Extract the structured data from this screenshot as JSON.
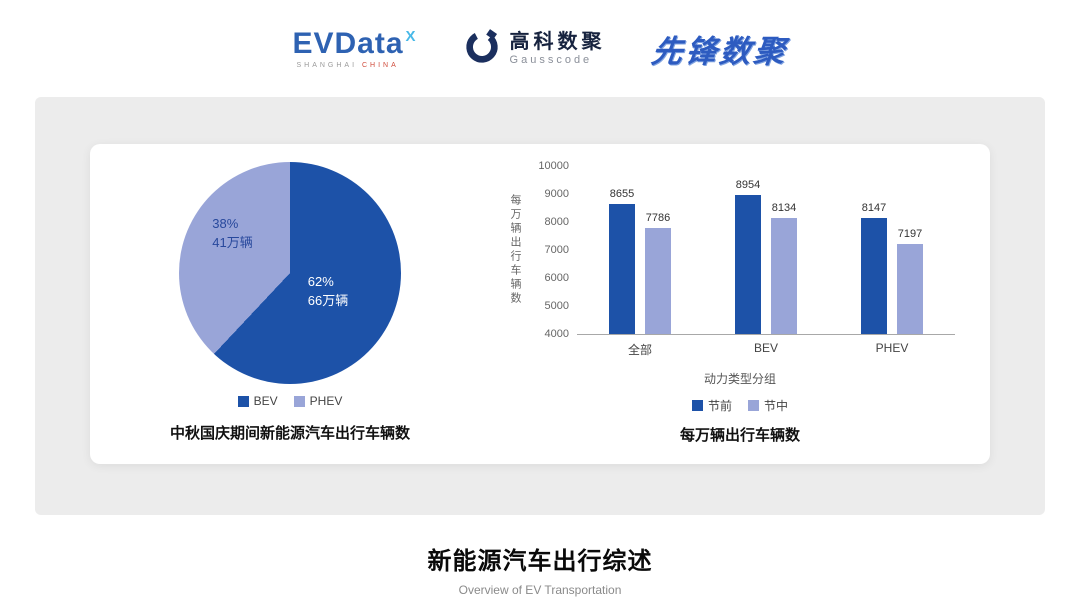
{
  "header": {
    "evdata": {
      "text": "EVData",
      "sup": "X",
      "sub_left": "SHANGHAI",
      "sub_right": "CHINA"
    },
    "gausscode": {
      "cn": "高科数聚",
      "en": "Gausscode"
    },
    "pioneer": "先锋数聚"
  },
  "colors": {
    "primary": "#1d52a8",
    "secondary": "#99a5d8"
  },
  "chart_data": [
    {
      "type": "pie",
      "title": "中秋国庆期间新能源汽车出行车辆数",
      "slices": [
        {
          "name": "BEV",
          "pct": 62,
          "pct_label": "62%",
          "amount_label": "66万辆",
          "color": "#1d52a8"
        },
        {
          "name": "PHEV",
          "pct": 38,
          "pct_label": "38%",
          "amount_label": "41万辆",
          "color": "#99a5d8"
        }
      ],
      "legend_position": "bottom"
    },
    {
      "type": "bar",
      "title": "每万辆出行车辆数",
      "categories": [
        "全部",
        "BEV",
        "PHEV"
      ],
      "series": [
        {
          "name": "节前",
          "values": [
            8655,
            8954,
            8147
          ],
          "color": "#1d52a8"
        },
        {
          "name": "节中",
          "values": [
            7786,
            8134,
            7197
          ],
          "color": "#99a5d8"
        }
      ],
      "ylabel": "每万辆出行车辆数",
      "xlabel": "动力类型分组",
      "ylim": [
        4000,
        10000
      ],
      "ytick_step": 1000,
      "grid": false,
      "legend_position": "bottom"
    }
  ],
  "footer": {
    "title": "新能源汽车出行综述",
    "subtitle": "Overview of EV Transportation"
  }
}
